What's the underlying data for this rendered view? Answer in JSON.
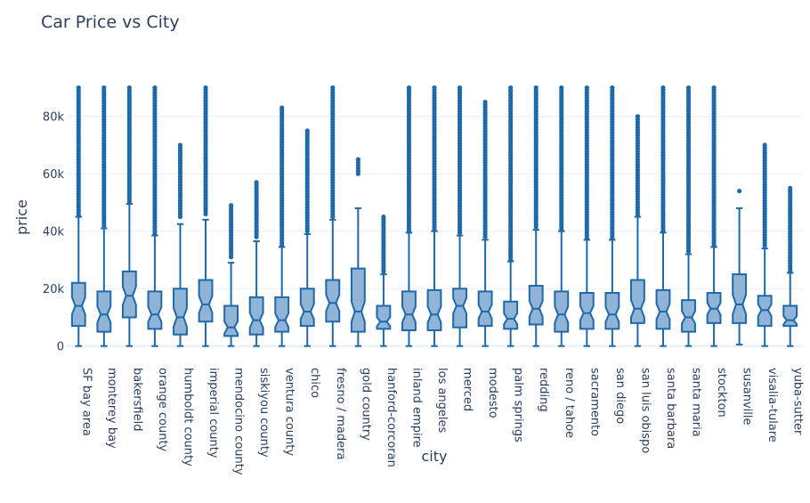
{
  "chart_data": {
    "type": "box",
    "title": "Car Price vs City",
    "xlabel": "city",
    "ylabel": "price",
    "ylim": [
      -3500,
      92000
    ],
    "yticks": [
      0,
      20000,
      40000,
      60000,
      80000
    ],
    "ytick_labels": [
      "0",
      "20k",
      "40k",
      "60k",
      "80k"
    ],
    "grid": true,
    "notched": true,
    "colors": {
      "box_fill": "#8fb4d8",
      "box_line": "#1f69a8",
      "outlier": "#1f69a8"
    },
    "series": [
      {
        "city": "SF bay area",
        "min": 0,
        "q1": 7000,
        "median": 14000,
        "q3": 22000,
        "whisker_high": 45000,
        "outlier_min": 45500,
        "outlier_max": 90000
      },
      {
        "city": "monterey bay",
        "min": 0,
        "q1": 5000,
        "median": 11000,
        "q3": 19000,
        "whisker_high": 41000,
        "outlier_min": 42000,
        "outlier_max": 90000
      },
      {
        "city": "bakersfield",
        "min": 0,
        "q1": 10000,
        "median": 17500,
        "q3": 26000,
        "whisker_high": 49500,
        "outlier_min": 50000,
        "outlier_max": 90000
      },
      {
        "city": "orange county",
        "min": 0,
        "q1": 6000,
        "median": 11000,
        "q3": 19000,
        "whisker_high": 38500,
        "outlier_min": 39000,
        "outlier_max": 90000
      },
      {
        "city": "humboldt county",
        "min": 0,
        "q1": 4000,
        "median": 10000,
        "q3": 20000,
        "whisker_high": 42500,
        "outlier_min": 45000,
        "outlier_max": 70000
      },
      {
        "city": "imperial county",
        "min": 0,
        "q1": 8500,
        "median": 14500,
        "q3": 23000,
        "whisker_high": 44000,
        "outlier_min": 46000,
        "outlier_max": 90000
      },
      {
        "city": "mendocino county",
        "min": 0,
        "q1": 3500,
        "median": 6500,
        "q3": 14000,
        "whisker_high": 29000,
        "outlier_min": 31000,
        "outlier_max": 49000
      },
      {
        "city": "siskiyou county",
        "min": 0,
        "q1": 4000,
        "median": 9000,
        "q3": 17000,
        "whisker_high": 36500,
        "outlier_min": 38000,
        "outlier_max": 57000
      },
      {
        "city": "ventura county",
        "min": 0,
        "q1": 5000,
        "median": 9000,
        "q3": 17000,
        "whisker_high": 34500,
        "outlier_min": 35000,
        "outlier_max": 83000
      },
      {
        "city": "chico",
        "min": 0,
        "q1": 7000,
        "median": 12000,
        "q3": 20000,
        "whisker_high": 39000,
        "outlier_min": 40000,
        "outlier_max": 75000
      },
      {
        "city": "fresno / madera",
        "min": 0,
        "q1": 8500,
        "median": 15000,
        "q3": 23000,
        "whisker_high": 44000,
        "outlier_min": 45000,
        "outlier_max": 90000
      },
      {
        "city": "gold country",
        "min": 0,
        "q1": 5000,
        "median": 12000,
        "q3": 27000,
        "whisker_high": 48000,
        "outlier_min": 60000,
        "outlier_max": 65000
      },
      {
        "city": "hanford-corcoran",
        "min": 0,
        "q1": 6000,
        "median": 8500,
        "q3": 14000,
        "whisker_high": 25000,
        "outlier_min": 26000,
        "outlier_max": 45000
      },
      {
        "city": "inland empire",
        "min": 0,
        "q1": 5500,
        "median": 11000,
        "q3": 19000,
        "whisker_high": 39500,
        "outlier_min": 40000,
        "outlier_max": 90000
      },
      {
        "city": "los angeles",
        "min": 0,
        "q1": 5500,
        "median": 11000,
        "q3": 19500,
        "whisker_high": 40000,
        "outlier_min": 40500,
        "outlier_max": 90000
      },
      {
        "city": "merced",
        "min": 0,
        "q1": 6500,
        "median": 14000,
        "q3": 20000,
        "whisker_high": 38500,
        "outlier_min": 39500,
        "outlier_max": 90000
      },
      {
        "city": "modesto",
        "min": 0,
        "q1": 7000,
        "median": 12000,
        "q3": 19000,
        "whisker_high": 37000,
        "outlier_min": 38000,
        "outlier_max": 85000
      },
      {
        "city": "palm springs",
        "min": 0,
        "q1": 6000,
        "median": 9500,
        "q3": 15500,
        "whisker_high": 29500,
        "outlier_min": 30000,
        "outlier_max": 90000
      },
      {
        "city": "redding",
        "min": 0,
        "q1": 7500,
        "median": 13000,
        "q3": 21000,
        "whisker_high": 40500,
        "outlier_min": 41500,
        "outlier_max": 90000
      },
      {
        "city": "reno / tahoe",
        "min": 0,
        "q1": 5000,
        "median": 11000,
        "q3": 19000,
        "whisker_high": 40000,
        "outlier_min": 40500,
        "outlier_max": 90000
      },
      {
        "city": "sacramento",
        "min": 0,
        "q1": 6000,
        "median": 11500,
        "q3": 18500,
        "whisker_high": 37000,
        "outlier_min": 37500,
        "outlier_max": 90000
      },
      {
        "city": "san diego",
        "min": 0,
        "q1": 6000,
        "median": 11000,
        "q3": 18500,
        "whisker_high": 37000,
        "outlier_min": 37500,
        "outlier_max": 90000
      },
      {
        "city": "san luis obispo",
        "min": 0,
        "q1": 8000,
        "median": 13000,
        "q3": 23000,
        "whisker_high": 45000,
        "outlier_min": 45500,
        "outlier_max": 80000
      },
      {
        "city": "santa barbara",
        "min": 0,
        "q1": 6000,
        "median": 12000,
        "q3": 19500,
        "whisker_high": 39500,
        "outlier_min": 40000,
        "outlier_max": 90000
      },
      {
        "city": "santa maria",
        "min": 0,
        "q1": 5000,
        "median": 10000,
        "q3": 16000,
        "whisker_high": 32000,
        "outlier_min": 33000,
        "outlier_max": 90000
      },
      {
        "city": "stockton",
        "min": 0,
        "q1": 8000,
        "median": 13000,
        "q3": 18500,
        "whisker_high": 34500,
        "outlier_min": 35000,
        "outlier_max": 90000
      },
      {
        "city": "susanville",
        "min": 500,
        "q1": 8000,
        "median": 14500,
        "q3": 25000,
        "whisker_high": 48000,
        "outlier_min": 54000,
        "outlier_max": 54000
      },
      {
        "city": "visalia-tulare",
        "min": 0,
        "q1": 7000,
        "median": 12500,
        "q3": 17500,
        "whisker_high": 34000,
        "outlier_min": 35000,
        "outlier_max": 70000
      },
      {
        "city": "yuba-sutter",
        "min": 0,
        "q1": 7000,
        "median": 9000,
        "q3": 14000,
        "whisker_high": 25500,
        "outlier_min": 26000,
        "outlier_max": 55000
      }
    ]
  }
}
